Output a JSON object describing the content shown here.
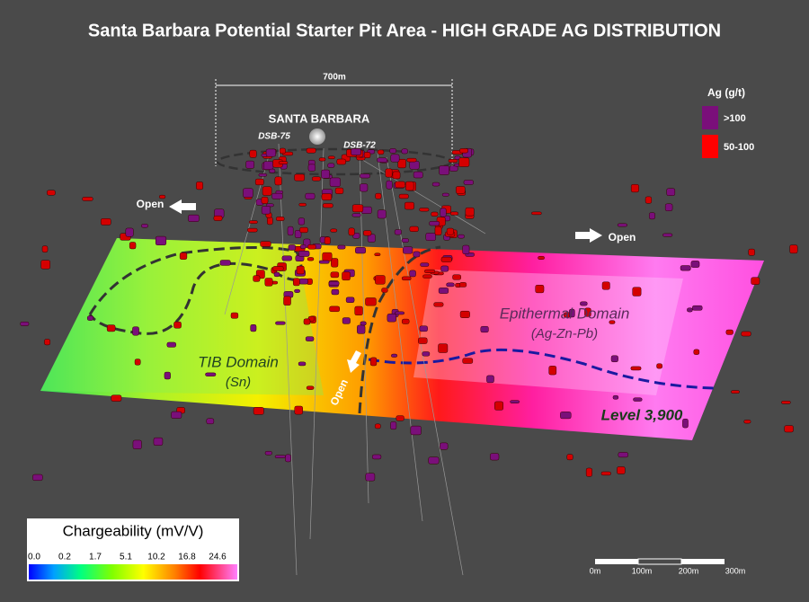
{
  "title": "Santa Barbara Potential Starter Pit Area - HIGH GRADE AG DISTRIBUTION",
  "annotations": {
    "width": "700m",
    "site": "SANTA BARBARA",
    "hole_left": "DSB-75",
    "hole_right": "DSB-72",
    "open_left": "Open",
    "open_right": "Open",
    "open_center": "Open",
    "epithermal_domain": "Epithermal Domain",
    "epithermal_metals": "(Ag-Zn-Pb)",
    "tib_domain": "TIB Domain",
    "tib_metals": "(Sn)",
    "level": "Level 3,900"
  },
  "legend": {
    "title": "Ag (g/t)",
    "items": [
      {
        "label": ">100",
        "color": "#7a0f7a"
      },
      {
        "label": "50-100",
        "color": "#ff0000"
      }
    ]
  },
  "colorbar": {
    "title": "Chargeability (mV/V)",
    "ticks": [
      "0.0",
      "0.2",
      "1.7",
      "5.1",
      "10.2",
      "16.8",
      "24.6"
    ]
  },
  "scale_bar": {
    "labels": [
      "0m",
      "100m",
      "200m",
      "300m"
    ]
  }
}
